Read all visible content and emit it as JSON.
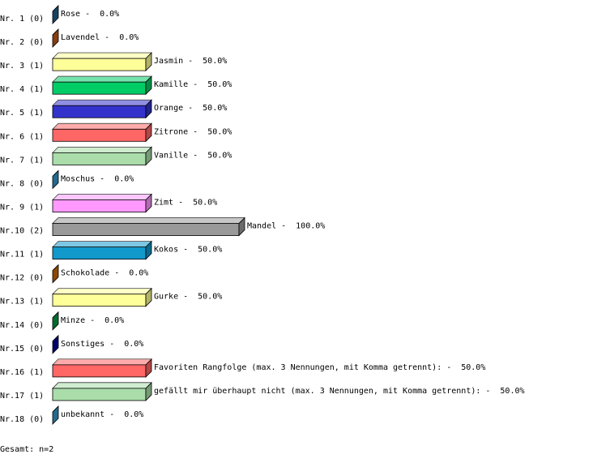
{
  "chart_data": {
    "type": "bar",
    "orientation": "horizontal",
    "categories": [
      "Nr. 1 (0)",
      "Nr. 2 (0)",
      "Nr. 3 (1)",
      "Nr. 4 (1)",
      "Nr. 5 (1)",
      "Nr. 6 (1)",
      "Nr. 7 (1)",
      "Nr. 8 (0)",
      "Nr. 9 (1)",
      "Nr.10 (2)",
      "Nr.11 (1)",
      "Nr.12 (0)",
      "Nr.13 (1)",
      "Nr.14 (0)",
      "Nr.15 (0)",
      "Nr.16 (1)",
      "Nr.17 (1)",
      "Nr.18 (0)"
    ],
    "names": [
      "Rose",
      "Lavendel",
      "Jasmin",
      "Kamille",
      "Orange",
      "Zitrone",
      "Vanille",
      "Moschus",
      "Zimt",
      "Mandel",
      "Kokos",
      "Schokolade",
      "Gurke",
      "Minze",
      "Sonstiges",
      "Favoriten Rangfolge (max. 3 Nennungen, mit Komma getrennt):",
      "gefällt mir überhaupt nicht (max. 3 Nennungen, mit Komma getrennt):",
      "unbekannt"
    ],
    "separator": "-",
    "values": [
      0,
      0,
      50,
      50,
      50,
      50,
      50,
      0,
      50,
      100,
      50,
      0,
      50,
      0,
      0,
      50,
      50,
      0
    ],
    "value_labels": [
      "0.0%",
      "0.0%",
      "50.0%",
      "50.0%",
      "50.0%",
      "50.0%",
      "50.0%",
      "0.0%",
      "50.0%",
      "100.0%",
      "50.0%",
      "0.0%",
      "50.0%",
      "0.0%",
      "0.0%",
      "50.0%",
      "50.0%",
      "0.0%"
    ],
    "colors": [
      "#1f5f8f",
      "#c05a1a",
      "#ffff99",
      "#00cc66",
      "#3333cc",
      "#ff6666",
      "#aaddaa",
      "#3399cc",
      "#ff99ff",
      "#999999",
      "#1199cc",
      "#cc6600",
      "#ffff99",
      "#009944",
      "#000099",
      "#ff6666",
      "#aaddaa",
      "#3399cc"
    ],
    "xlim": [
      0,
      100
    ],
    "footer": "Gesamt: n=2"
  }
}
